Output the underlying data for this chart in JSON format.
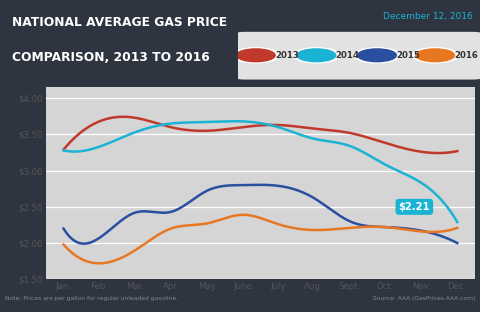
{
  "title_line1": "NATIONAL AVERAGE GAS PRICE",
  "title_line2": "COMPARISON, 2013 TO 2016",
  "date_label": "December 12, 2016",
  "bg_color": "#2e3440",
  "title_bg_color": "#bf2d2d",
  "chart_bg_color": "#d5d5d5",
  "note_text": "Note: Prices are per gallon for regular unleaded gasoline.",
  "source_text": "Source: AAA (GasPrices.AAA.com)",
  "annotation_text": "$2.21",
  "annotation_color": "#1ab3d4",
  "months": [
    "Jan.",
    "Feb.",
    "Mar.",
    "Apr.",
    "May",
    "June",
    "July",
    "Aug.",
    "Sept.",
    "Oct.",
    "Nov.",
    "Dec."
  ],
  "ylim": [
    1.5,
    4.15
  ],
  "yticks": [
    1.5,
    2.0,
    2.5,
    3.0,
    3.5,
    4.0
  ],
  "ytick_labels": [
    "$1.50",
    "$2.00",
    "$2.50",
    "$3.00",
    "$3.50",
    "$4.00"
  ],
  "legend_years": [
    "2013",
    "2014",
    "2015",
    "2016"
  ],
  "legend_colors": [
    "#c0392b",
    "#1ab3d4",
    "#2b4fa0",
    "#e87722"
  ],
  "data_2013": [
    3.29,
    3.68,
    3.73,
    3.6,
    3.55,
    3.6,
    3.63,
    3.58,
    3.52,
    3.38,
    3.26,
    3.27
  ],
  "data_2014": [
    3.28,
    3.33,
    3.53,
    3.65,
    3.67,
    3.68,
    3.6,
    3.44,
    3.34,
    3.08,
    2.83,
    2.29
  ],
  "data_2015": [
    2.2,
    2.07,
    2.42,
    2.43,
    2.72,
    2.8,
    2.79,
    2.62,
    2.3,
    2.22,
    2.17,
    2.0
  ],
  "data_2016": [
    1.98,
    1.72,
    1.9,
    2.2,
    2.27,
    2.39,
    2.26,
    2.18,
    2.21,
    2.22,
    2.16,
    2.21
  ],
  "color_2013": "#c0392b",
  "color_2014": "#1ab3d4",
  "color_2015": "#2b4fa0",
  "color_2016": "#e87722",
  "legend_pill_color": "#e2e2e2",
  "tick_color": "#555555",
  "footer_text_color": "#888888"
}
